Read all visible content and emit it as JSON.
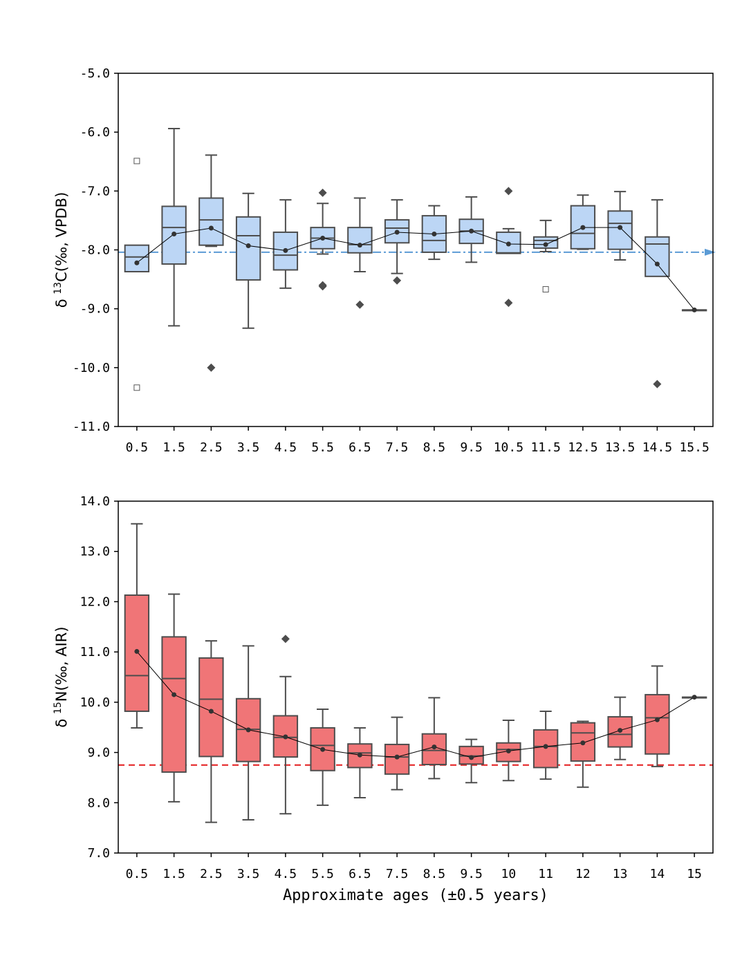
{
  "chart_data": [
    {
      "type": "box",
      "ylabel_prefix": "δ ",
      "ylabel_sup": "13",
      "ylabel_main": "C(‰, VPDB)",
      "ylim": [
        -11.0,
        -5.0
      ],
      "yticks": [
        "-5.0",
        "-6.0",
        "-7.0",
        "-8.0",
        "-9.0",
        "-10.0",
        "-11.0"
      ],
      "ytick_values": [
        -5.0,
        -6.0,
        -7.0,
        -8.0,
        -9.0,
        -10.0,
        -11.0
      ],
      "categories": [
        "0.5",
        "1.5",
        "2.5",
        "3.5",
        "4.5",
        "5.5",
        "6.5",
        "7.5",
        "8.5",
        "9.5",
        "10.5",
        "11.5",
        "12.5",
        "13.5",
        "14.5",
        "15.5"
      ],
      "box_color": "#bcd6f5",
      "edge_color": "#4d4d4d",
      "reference_line": {
        "value": -8.04,
        "color": "#5b9bd5",
        "style": "dash-dot",
        "arrow": true
      },
      "boxes": [
        {
          "whislo": null,
          "q1": -8.37,
          "med": -8.12,
          "q3": -7.92,
          "whishi": null,
          "mean": -8.22,
          "outliers": [],
          "square_outliers": [
            -6.49,
            -10.34
          ]
        },
        {
          "whislo": -9.29,
          "q1": -8.24,
          "med": -7.62,
          "q3": -7.26,
          "whishi": -5.94,
          "mean": -7.73,
          "outliers": [],
          "square_outliers": []
        },
        {
          "whislo": -7.94,
          "q1": -7.92,
          "med": -7.49,
          "q3": -7.12,
          "whishi": -6.39,
          "mean": -7.63,
          "outliers": [
            -10.0
          ],
          "square_outliers": []
        },
        {
          "whislo": -9.33,
          "q1": -8.51,
          "med": -7.76,
          "q3": -7.44,
          "whishi": -7.04,
          "mean": -7.93,
          "outliers": [],
          "square_outliers": []
        },
        {
          "whislo": -8.65,
          "q1": -8.34,
          "med": -8.09,
          "q3": -7.7,
          "whishi": -7.15,
          "mean": -8.01,
          "outliers": [],
          "square_outliers": []
        },
        {
          "whislo": -8.07,
          "q1": -7.98,
          "med": -7.8,
          "q3": -7.62,
          "whishi": -7.21,
          "mean": -7.8,
          "outliers": [
            -7.03,
            -8.6,
            -8.62
          ],
          "square_outliers": []
        },
        {
          "whislo": -8.37,
          "q1": -8.05,
          "med": -7.91,
          "q3": -7.62,
          "whishi": -7.12,
          "mean": -7.92,
          "outliers": [
            -8.93
          ],
          "square_outliers": []
        },
        {
          "whislo": -8.4,
          "q1": -7.88,
          "med": -7.63,
          "q3": -7.49,
          "whishi": -7.15,
          "mean": -7.7,
          "outliers": [
            -8.52
          ],
          "square_outliers": []
        },
        {
          "whislo": -8.16,
          "q1": -8.04,
          "med": -7.84,
          "q3": -7.42,
          "whishi": -7.25,
          "mean": -7.73,
          "outliers": [],
          "square_outliers": []
        },
        {
          "whislo": -8.21,
          "q1": -7.89,
          "med": -7.68,
          "q3": -7.48,
          "whishi": -7.1,
          "mean": -7.68,
          "outliers": [],
          "square_outliers": []
        },
        {
          "whislo": null,
          "q1": -8.06,
          "med": -8.05,
          "q3": -7.7,
          "whishi": -7.64,
          "mean": -7.9,
          "outliers": [
            -7.0,
            -8.9
          ],
          "square_outliers": []
        },
        {
          "whislo": -8.03,
          "q1": -7.97,
          "med": -7.84,
          "q3": -7.78,
          "whishi": -7.5,
          "mean": -7.91,
          "outliers": [],
          "square_outliers": [
            -8.67
          ]
        },
        {
          "whislo": -7.99,
          "q1": -7.98,
          "med": -7.72,
          "q3": -7.25,
          "whishi": -7.07,
          "mean": -7.62,
          "outliers": [],
          "square_outliers": []
        },
        {
          "whislo": -8.17,
          "q1": -7.99,
          "med": -7.55,
          "q3": -7.34,
          "whishi": -7.01,
          "mean": -7.62,
          "outliers": [],
          "square_outliers": []
        },
        {
          "whislo": null,
          "q1": -8.45,
          "med": -7.9,
          "q3": -7.78,
          "whishi": -7.15,
          "mean": -8.24,
          "outliers": [
            -10.28
          ],
          "square_outliers": []
        },
        {
          "whislo": null,
          "q1": -9.02,
          "med": -9.02,
          "q3": -9.02,
          "whishi": null,
          "mean": -9.02,
          "outliers": [],
          "square_outliers": []
        }
      ]
    },
    {
      "type": "box",
      "ylabel_prefix": "δ ",
      "ylabel_sup": "15",
      "ylabel_main": "N(‰, AIR)",
      "ylim": [
        7.0,
        14.0
      ],
      "yticks": [
        "14.0",
        "13.0",
        "12.0",
        "11.0",
        "10.0",
        "9.0",
        "8.0",
        "7.0"
      ],
      "ytick_values": [
        14.0,
        13.0,
        12.0,
        11.0,
        10.0,
        9.0,
        8.0,
        7.0
      ],
      "categories": [
        "0.5",
        "1.5",
        "2.5",
        "3.5",
        "4.5",
        "5.5",
        "6.5",
        "7.5",
        "8.5",
        "9.5",
        "10",
        "11",
        "12",
        "13",
        "14",
        "15"
      ],
      "xlabel": "Approximate ages (±0.5 years)",
      "box_color": "#f07577",
      "edge_color": "#4d4d4d",
      "reference_line": {
        "value": 8.75,
        "color": "#e31a1c",
        "style": "dashed",
        "arrow": false
      },
      "boxes": [
        {
          "whislo": 9.49,
          "q1": 9.82,
          "med": 10.53,
          "q3": 12.13,
          "whishi": 13.55,
          "mean": 11.01,
          "outliers": []
        },
        {
          "whislo": 8.02,
          "q1": 8.61,
          "med": 10.47,
          "q3": 11.3,
          "whishi": 12.15,
          "mean": 10.15,
          "outliers": []
        },
        {
          "whislo": 7.61,
          "q1": 8.92,
          "med": 10.06,
          "q3": 10.88,
          "whishi": 11.22,
          "mean": 9.82,
          "outliers": []
        },
        {
          "whislo": 7.66,
          "q1": 8.82,
          "med": 9.46,
          "q3": 10.07,
          "whishi": 11.12,
          "mean": 9.45,
          "outliers": []
        },
        {
          "whislo": 7.78,
          "q1": 8.91,
          "med": 9.3,
          "q3": 9.73,
          "whishi": 10.51,
          "mean": 9.31,
          "outliers": [
            11.26
          ]
        },
        {
          "whislo": 7.95,
          "q1": 8.64,
          "med": 9.14,
          "q3": 9.49,
          "whishi": 9.86,
          "mean": 9.06,
          "outliers": []
        },
        {
          "whislo": 8.1,
          "q1": 8.7,
          "med": 8.99,
          "q3": 9.17,
          "whishi": 9.49,
          "mean": 8.95,
          "outliers": []
        },
        {
          "whislo": 8.26,
          "q1": 8.57,
          "med": 8.91,
          "q3": 9.16,
          "whishi": 9.7,
          "mean": 8.91,
          "outliers": []
        },
        {
          "whislo": 8.48,
          "q1": 8.76,
          "med": 9.04,
          "q3": 9.37,
          "whishi": 10.09,
          "mean": 9.11,
          "outliers": []
        },
        {
          "whislo": 8.4,
          "q1": 8.77,
          "med": 8.93,
          "q3": 9.12,
          "whishi": 9.26,
          "mean": 8.9,
          "outliers": []
        },
        {
          "whislo": 8.44,
          "q1": 8.82,
          "med": 9.06,
          "q3": 9.19,
          "whishi": 9.64,
          "mean": 9.03,
          "outliers": []
        },
        {
          "whislo": 8.47,
          "q1": 8.7,
          "med": 9.12,
          "q3": 9.45,
          "whishi": 9.82,
          "mean": 9.12,
          "outliers": []
        },
        {
          "whislo": 8.31,
          "q1": 8.83,
          "med": 9.39,
          "q3": 9.59,
          "whishi": 9.62,
          "mean": 9.19,
          "outliers": []
        },
        {
          "whislo": 8.86,
          "q1": 9.11,
          "med": 9.36,
          "q3": 9.71,
          "whishi": 10.1,
          "mean": 9.44,
          "outliers": []
        },
        {
          "whislo": 8.72,
          "q1": 8.97,
          "med": 9.69,
          "q3": 10.15,
          "whishi": 10.72,
          "mean": 9.65,
          "outliers": []
        },
        {
          "whislo": null,
          "q1": 10.1,
          "med": 10.1,
          "q3": 10.1,
          "whishi": null,
          "mean": 10.1,
          "outliers": []
        }
      ]
    }
  ]
}
